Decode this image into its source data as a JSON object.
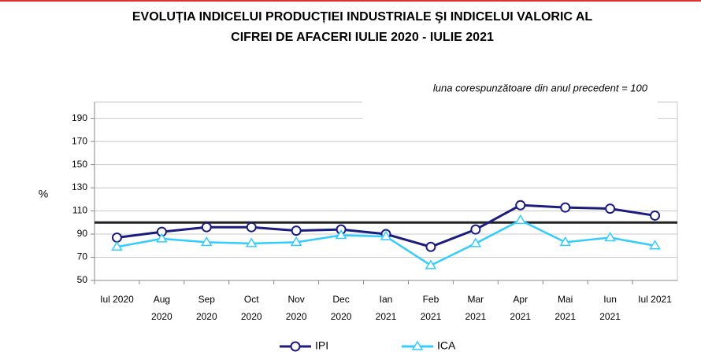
{
  "chart_data": {
    "type": "line",
    "title": [
      "EVOLUȚIA  INDICELUI PRODUCȚIEI INDUSTRIALE ŞI INDICELUI  VALORIC AL",
      "CIFREI DE AFACERI  IULIE 2020 -  IULIE 2021"
    ],
    "annotation": "luna corespunzătoare din anul precedent = 100",
    "y_label": "%",
    "categories": [
      [
        "Iul 2020"
      ],
      [
        "Aug",
        "2020"
      ],
      [
        "Sep",
        "2020"
      ],
      [
        "Oct",
        "2020"
      ],
      [
        "Nov",
        "2020"
      ],
      [
        "Dec",
        "2020"
      ],
      [
        "Ian",
        "2021"
      ],
      [
        "Feb",
        "2021"
      ],
      [
        "Mar",
        "2021"
      ],
      [
        "Apr",
        "2021"
      ],
      [
        "Mai",
        "2021"
      ],
      [
        "Iun",
        "2021"
      ],
      [
        "Iul 2021"
      ]
    ],
    "series": [
      {
        "name": "IPI",
        "color": "#1c1c80",
        "marker": "circle",
        "values": [
          87,
          92,
          96,
          96,
          93,
          94,
          90,
          79,
          94,
          115,
          113,
          112,
          106
        ]
      },
      {
        "name": "ICA",
        "color": "#33ccff",
        "marker": "triangle",
        "values": [
          79,
          86,
          83,
          82,
          83,
          89,
          88,
          63,
          82,
          102,
          83,
          87,
          80
        ]
      }
    ],
    "reference_line": 100,
    "ylim": [
      50,
      204
    ],
    "yticks": [
      50,
      70,
      90,
      110,
      130,
      150,
      170,
      190
    ],
    "grid": true
  }
}
